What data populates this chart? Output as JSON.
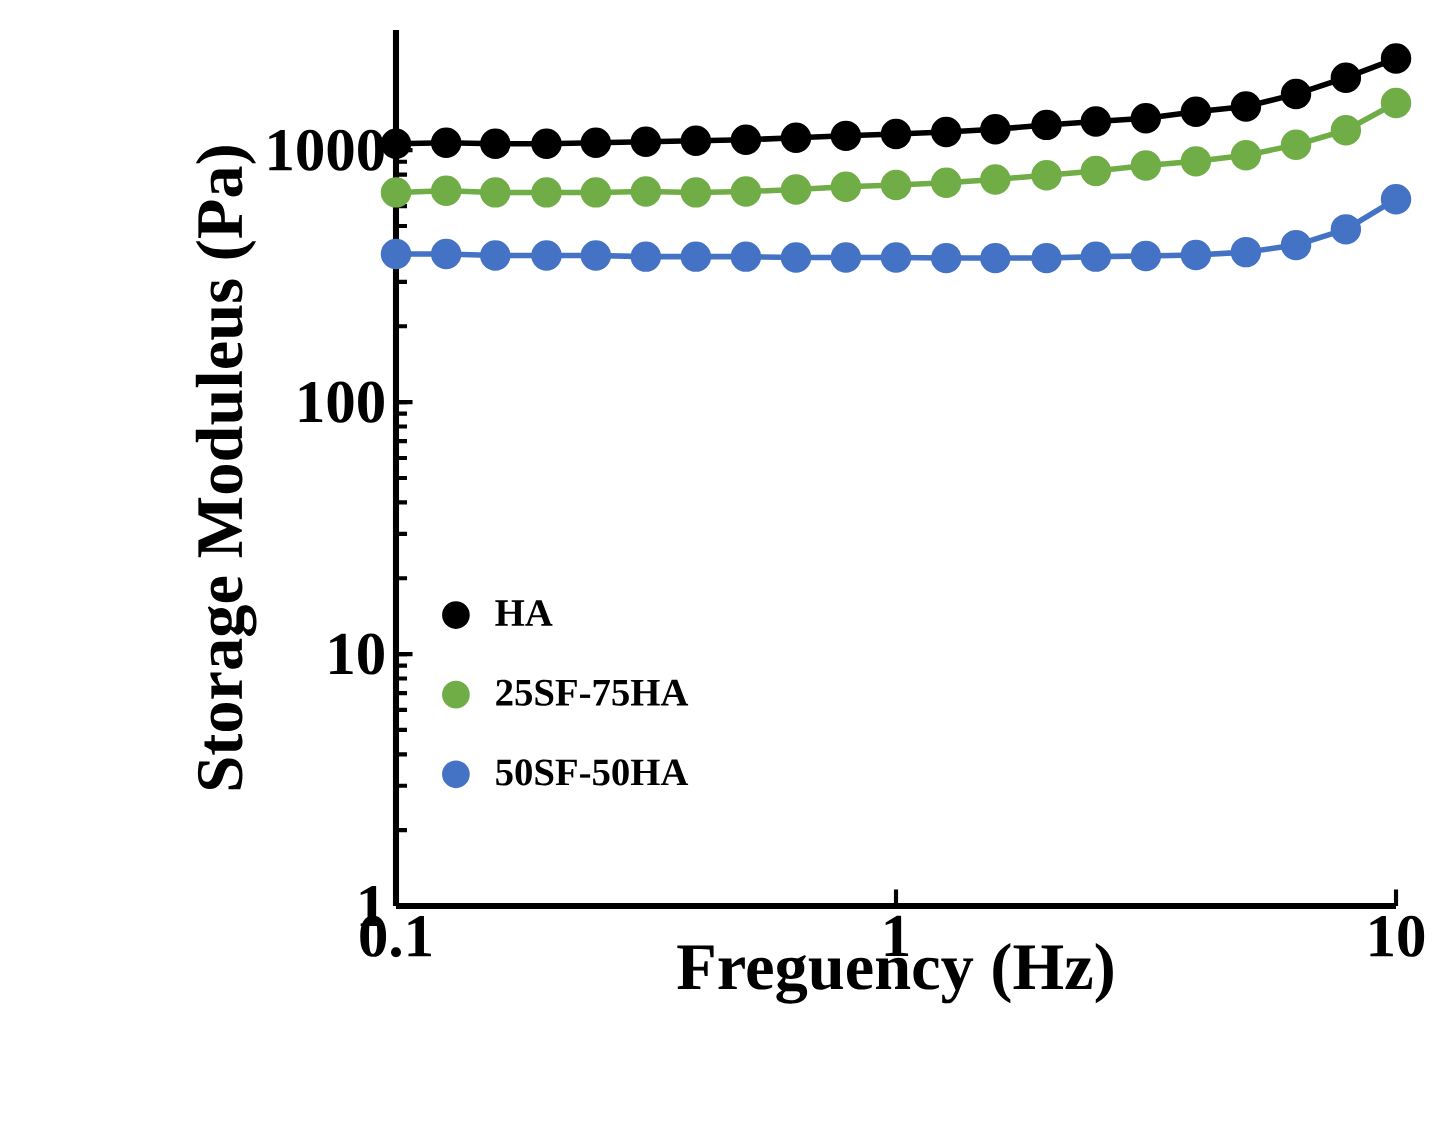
{
  "chart_data": {
    "type": "line",
    "xlabel": "Freguency (Hz)",
    "ylabel": "Storage Moduleus (Pa)",
    "x": [
      0.1,
      0.126,
      0.158,
      0.2,
      0.251,
      0.316,
      0.398,
      0.501,
      0.631,
      0.794,
      1,
      1.26,
      1.58,
      2,
      2.51,
      3.16,
      3.98,
      5.01,
      6.31,
      7.94,
      10
    ],
    "series": [
      {
        "name": "HA",
        "color": "#000000",
        "values": [
          1060,
          1070,
          1060,
          1060,
          1070,
          1080,
          1090,
          1100,
          1120,
          1140,
          1160,
          1180,
          1210,
          1260,
          1300,
          1340,
          1420,
          1490,
          1670,
          1940,
          2310
        ]
      },
      {
        "name": "25SF-75HA",
        "color": "#70ad47",
        "values": [
          680,
          690,
          680,
          680,
          680,
          685,
          680,
          685,
          698,
          716,
          728,
          742,
          765,
          796,
          827,
          869,
          903,
          954,
          1050,
          1200,
          1540
        ]
      },
      {
        "name": "50SF-50HA",
        "color": "#4472c4",
        "values": [
          387,
          387,
          382,
          382,
          382,
          378,
          378,
          378,
          375,
          375,
          375,
          373,
          373,
          373,
          378,
          380,
          384,
          394,
          420,
          485,
          639
        ]
      }
    ],
    "log": "xy",
    "xlim": [
      0.1,
      10
    ],
    "ylim": [
      1,
      3000
    ],
    "xticks": [
      0.1,
      1,
      10
    ],
    "yticks": [
      1,
      10,
      100,
      1000
    ],
    "legend": "bottom left",
    "marker": "circle",
    "line_style": "solid",
    "grid": false
  }
}
